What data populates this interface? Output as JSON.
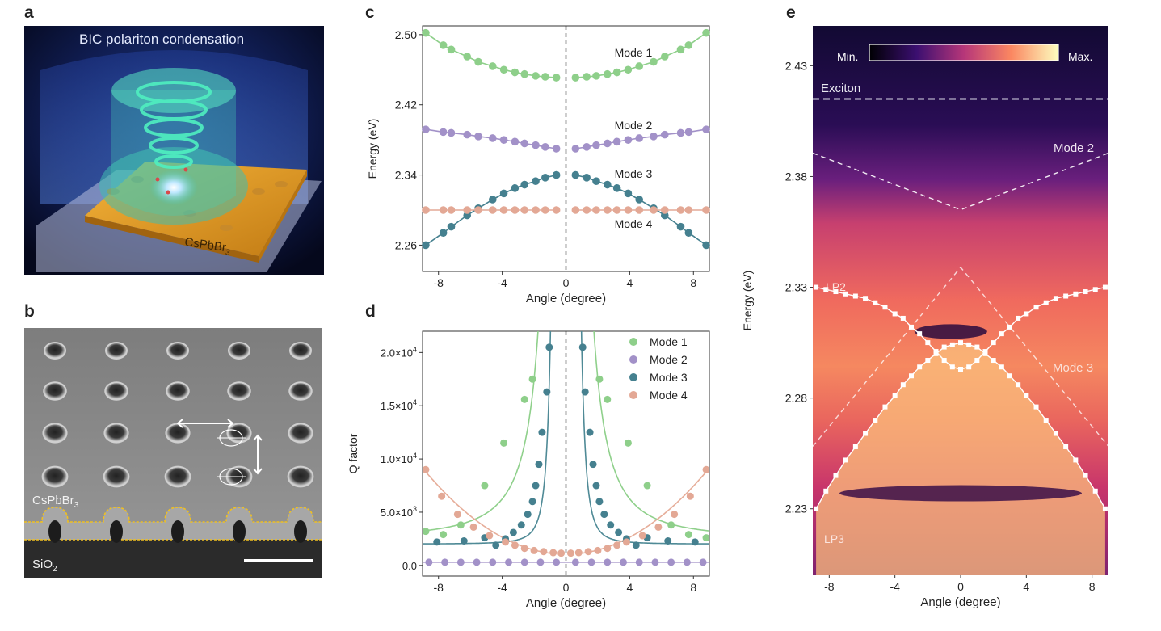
{
  "panel_letters": {
    "a": "a",
    "b": "b",
    "c": "c",
    "d": "d",
    "e": "e"
  },
  "panel_a": {
    "title": "BIC polariton condensation",
    "material_label": "CsPbBr",
    "material_sub": "3"
  },
  "panel_b": {
    "material_label": "CsPbBr",
    "material_sub": "3",
    "substrate_label": "SiO",
    "substrate_sub": "2"
  },
  "colors": {
    "mode1": "#8ecf8a",
    "mode2": "#a291c8",
    "mode3": "#45808f",
    "mode4": "#e3a895",
    "fit_mode1": "#8fd08b",
    "fit_mode3": "#4f8a96",
    "fit_mode4": "#e6ad99"
  },
  "chart_data": [
    {
      "id": "c",
      "type": "scatter",
      "xlabel": "Angle (degree)",
      "ylabel": "Energy (eV)",
      "xlim": [
        -9,
        9
      ],
      "ylim": [
        2.23,
        2.51
      ],
      "xticks": [
        -8,
        -4,
        0,
        4,
        8
      ],
      "yticks": [
        2.26,
        2.34,
        2.42,
        2.5
      ],
      "xtick_labels": [
        "-8",
        "-4",
        "0",
        "4",
        "8"
      ],
      "ytick_labels": [
        "2.26",
        "2.34",
        "2.42",
        "2.50"
      ],
      "x": [
        -8.8,
        -7.7,
        -7.2,
        -6.2,
        -5.5,
        -4.6,
        -3.9,
        -3.2,
        -2.6,
        -1.9,
        -1.3,
        -0.6,
        0.6,
        1.3,
        1.9,
        2.6,
        3.2,
        3.9,
        4.6,
        5.5,
        6.2,
        7.2,
        7.7,
        8.8
      ],
      "series": [
        {
          "name": "Mode 1",
          "values": [
            2.502,
            2.488,
            2.483,
            2.475,
            2.469,
            2.464,
            2.46,
            2.457,
            2.455,
            2.453,
            2.452,
            2.451,
            2.451,
            2.452,
            2.453,
            2.455,
            2.457,
            2.46,
            2.464,
            2.469,
            2.475,
            2.483,
            2.488,
            2.502
          ]
        },
        {
          "name": "Mode 2",
          "values": [
            2.392,
            2.389,
            2.388,
            2.386,
            2.384,
            2.382,
            2.38,
            2.378,
            2.376,
            2.374,
            2.372,
            2.37,
            2.37,
            2.372,
            2.374,
            2.376,
            2.378,
            2.38,
            2.382,
            2.384,
            2.386,
            2.388,
            2.389,
            2.392
          ]
        },
        {
          "name": "Mode 3",
          "values": [
            2.26,
            2.274,
            2.281,
            2.294,
            2.302,
            2.312,
            2.319,
            2.325,
            2.329,
            2.333,
            2.337,
            2.34,
            2.34,
            2.337,
            2.333,
            2.329,
            2.325,
            2.319,
            2.312,
            2.302,
            2.294,
            2.281,
            2.274,
            2.26
          ]
        },
        {
          "name": "Mode 4",
          "values": [
            2.3,
            2.3,
            2.3,
            2.3,
            2.3,
            2.3,
            2.3,
            2.3,
            2.3,
            2.3,
            2.3,
            2.3,
            2.3,
            2.3,
            2.3,
            2.3,
            2.3,
            2.3,
            2.3,
            2.3,
            2.3,
            2.3,
            2.3,
            2.3
          ]
        }
      ]
    },
    {
      "id": "d",
      "type": "scatter",
      "xlabel": "Angle (degree)",
      "ylabel": "Q factor",
      "xlim": [
        -9,
        9
      ],
      "ylim": [
        -1000,
        22000
      ],
      "xticks": [
        -8,
        -4,
        0,
        4,
        8
      ],
      "yticks": [
        0,
        5000,
        10000,
        15000,
        20000
      ],
      "xtick_labels": [
        "-8",
        "-4",
        "0",
        "4",
        "8"
      ],
      "ytick_labels": [
        "0.0",
        "5.0×10",
        "1.0×10",
        "1.5×10",
        "2.0×10"
      ],
      "ytick_exponent": "4",
      "ytick_exponent_zero_tick": "3",
      "legend": [
        "Mode 1",
        "Mode 2",
        "Mode 3",
        "Mode 4"
      ],
      "legend_position": "top-right",
      "series": [
        {
          "name": "Mode 1",
          "points": [
            [
              -8.8,
              3200
            ],
            [
              -7.7,
              2900
            ],
            [
              -6.6,
              3800
            ],
            [
              -5.1,
              7500
            ],
            [
              -3.9,
              11500
            ],
            [
              -2.6,
              15600
            ],
            [
              -2.1,
              17500
            ],
            [
              2.1,
              17500
            ],
            [
              2.6,
              15600
            ],
            [
              3.9,
              11500
            ],
            [
              5.1,
              7500
            ],
            [
              6.6,
              3800
            ],
            [
              7.7,
              2900
            ],
            [
              8.8,
              2600
            ]
          ]
        },
        {
          "name": "Mode 2",
          "points": [
            [
              -8.6,
              300
            ],
            [
              -7.6,
              300
            ],
            [
              -6.6,
              300
            ],
            [
              -5.6,
              300
            ],
            [
              -4.6,
              300
            ],
            [
              -3.6,
              300
            ],
            [
              -2.6,
              300
            ],
            [
              -1.6,
              300
            ],
            [
              -0.6,
              300
            ],
            [
              0.6,
              300
            ],
            [
              1.6,
              300
            ],
            [
              2.6,
              300
            ],
            [
              3.6,
              300
            ],
            [
              4.6,
              300
            ],
            [
              5.6,
              300
            ],
            [
              6.6,
              300
            ],
            [
              7.6,
              300
            ],
            [
              8.6,
              300
            ]
          ]
        },
        {
          "name": "Mode 3",
          "points": [
            [
              -8.1,
              2200
            ],
            [
              -6.4,
              2300
            ],
            [
              -5.1,
              2600
            ],
            [
              -4.4,
              1900
            ],
            [
              -3.8,
              2500
            ],
            [
              -3.3,
              3100
            ],
            [
              -2.8,
              3800
            ],
            [
              -2.4,
              4800
            ],
            [
              -2.1,
              6000
            ],
            [
              -1.9,
              7500
            ],
            [
              -1.7,
              9500
            ],
            [
              -1.5,
              12500
            ],
            [
              -1.2,
              16300
            ],
            [
              -1.05,
              20500
            ],
            [
              1.05,
              20500
            ],
            [
              1.2,
              16300
            ],
            [
              1.5,
              12500
            ],
            [
              1.7,
              9500
            ],
            [
              1.9,
              7500
            ],
            [
              2.1,
              6000
            ],
            [
              2.4,
              4800
            ],
            [
              2.8,
              3800
            ],
            [
              3.3,
              3100
            ],
            [
              3.8,
              2500
            ],
            [
              4.4,
              1900
            ],
            [
              5.1,
              2600
            ],
            [
              6.4,
              2300
            ],
            [
              8.1,
              2200
            ]
          ]
        },
        {
          "name": "Mode 4",
          "points": [
            [
              -8.8,
              9000
            ],
            [
              -7.8,
              6500
            ],
            [
              -6.8,
              4800
            ],
            [
              -5.8,
              3600
            ],
            [
              -4.8,
              2800
            ],
            [
              -3.8,
              2200
            ],
            [
              -3.2,
              1900
            ],
            [
              -2.6,
              1600
            ],
            [
              -2.0,
              1400
            ],
            [
              -1.4,
              1300
            ],
            [
              -0.8,
              1200
            ],
            [
              -0.3,
              1150
            ],
            [
              0.3,
              1150
            ],
            [
              0.8,
              1200
            ],
            [
              1.4,
              1300
            ],
            [
              2.0,
              1400
            ],
            [
              2.6,
              1600
            ],
            [
              3.2,
              1900
            ],
            [
              3.8,
              2200
            ],
            [
              4.8,
              2800
            ],
            [
              5.8,
              3600
            ],
            [
              6.8,
              4800
            ],
            [
              7.8,
              6500
            ],
            [
              8.8,
              9000
            ]
          ]
        }
      ]
    },
    {
      "id": "e",
      "type": "heatmap",
      "xlabel": "Angle (degree)",
      "ylabel": "Energy (eV)",
      "xlim": [
        -9,
        9
      ],
      "ylim": [
        2.2,
        2.448
      ],
      "xticks": [
        -8,
        -4,
        0,
        4,
        8
      ],
      "yticks": [
        2.23,
        2.28,
        2.33,
        2.38,
        2.43
      ],
      "xtick_labels": [
        "-8",
        "-4",
        "0",
        "4",
        "8"
      ],
      "ytick_labels": [
        "2.23",
        "2.28",
        "2.33",
        "2.38",
        "2.43"
      ],
      "colorbar": {
        "min_label": "Min.",
        "max_label": "Max."
      },
      "exciton_energy": 2.415,
      "annotations": {
        "exciton": "Exciton",
        "mode2": "Mode 2",
        "mode3": "Mode 3",
        "lp2": "LP2",
        "lp3": "LP3"
      },
      "mode2_curve": {
        "center": 2.365,
        "edge": 2.39,
        "edge_angle": 8.8
      },
      "mode3_curve": {
        "center": 2.339,
        "edge": 2.26,
        "edge_angle": 8.8
      },
      "lp2": {
        "name": "LP2",
        "x": [
          -8.8,
          -8.2,
          -7.6,
          -7.0,
          -6.4,
          -5.8,
          -5.2,
          -4.6,
          -4.0,
          -3.5,
          -3.0,
          -2.5,
          -2.0,
          -1.5,
          -1.0,
          -0.5,
          0.0,
          0.5,
          1.0,
          1.5,
          2.0,
          2.5,
          3.0,
          3.5,
          4.0,
          4.6,
          5.2,
          5.8,
          6.4,
          7.0,
          7.6,
          8.2,
          8.8
        ],
        "values": [
          2.33,
          2.329,
          2.328,
          2.327,
          2.326,
          2.325,
          2.323,
          2.321,
          2.318,
          2.316,
          2.312,
          2.309,
          2.305,
          2.301,
          2.297,
          2.294,
          2.293,
          2.294,
          2.297,
          2.301,
          2.305,
          2.309,
          2.312,
          2.316,
          2.318,
          2.321,
          2.323,
          2.325,
          2.326,
          2.327,
          2.328,
          2.329,
          2.33
        ]
      },
      "lp3": {
        "name": "LP3",
        "x": [
          -8.8,
          -8.2,
          -7.6,
          -7.0,
          -6.4,
          -5.8,
          -5.2,
          -4.6,
          -4.0,
          -3.5,
          -3.0,
          -2.5,
          -2.0,
          -1.5,
          -1.0,
          -0.5,
          0.0,
          0.5,
          1.0,
          1.5,
          2.0,
          2.5,
          3.0,
          3.5,
          4.0,
          4.6,
          5.2,
          5.8,
          6.4,
          7.0,
          7.6,
          8.2,
          8.8
        ],
        "values": [
          2.23,
          2.238,
          2.245,
          2.252,
          2.258,
          2.264,
          2.27,
          2.276,
          2.281,
          2.286,
          2.29,
          2.294,
          2.297,
          2.3,
          2.303,
          2.304,
          2.305,
          2.304,
          2.303,
          2.3,
          2.297,
          2.294,
          2.29,
          2.286,
          2.281,
          2.276,
          2.27,
          2.264,
          2.258,
          2.252,
          2.245,
          2.238,
          2.23
        ]
      }
    }
  ]
}
